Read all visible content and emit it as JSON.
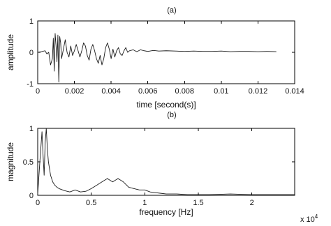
{
  "chart_data": [
    {
      "type": "line",
      "title": "(a)",
      "xlabel": "time [second(s)]",
      "ylabel": "amplitude",
      "xlim": [
        0,
        0.014
      ],
      "ylim": [
        -1,
        1
      ],
      "xticks": [
        "0",
        "0.002",
        "0.004",
        "0.006",
        "0.008",
        "0.01",
        "0.012",
        "0.014"
      ],
      "yticks": [
        "-1",
        "0",
        "1"
      ],
      "grid": false,
      "series": [
        {
          "x": [
            0.0,
            0.0002,
            0.0004,
            0.0005,
            0.0006,
            0.0007,
            0.0008,
            0.00085,
            0.0009,
            0.00095,
            0.001,
            0.00105,
            0.0011,
            0.00115,
            0.0012,
            0.00125,
            0.0013,
            0.0014,
            0.0015,
            0.0016,
            0.0017,
            0.0018,
            0.0019,
            0.002,
            0.0021,
            0.0022,
            0.0023,
            0.0024,
            0.0025,
            0.0026,
            0.0027,
            0.0028,
            0.0029,
            0.003,
            0.0031,
            0.0032,
            0.0033,
            0.0034,
            0.0035,
            0.0036,
            0.0037,
            0.0038,
            0.0039,
            0.004,
            0.0041,
            0.0042,
            0.0043,
            0.0044,
            0.0045,
            0.0046,
            0.0047,
            0.0048,
            0.0049,
            0.005,
            0.0052,
            0.0054,
            0.0056,
            0.0058,
            0.006,
            0.0063,
            0.0066,
            0.007,
            0.0075,
            0.008,
            0.0085,
            0.009,
            0.0095,
            0.01,
            0.0105,
            0.011,
            0.0115,
            0.012,
            0.0125,
            0.013
          ],
          "y": [
            0.0,
            0.02,
            0.05,
            -0.05,
            0.0,
            -0.4,
            -0.2,
            0.45,
            -0.6,
            0.6,
            0.2,
            -0.3,
            0.55,
            -0.95,
            0.5,
            0.3,
            -0.2,
            0.1,
            0.4,
            0.0,
            -0.15,
            0.2,
            -0.1,
            0.05,
            0.25,
            0.05,
            -0.15,
            0.05,
            0.3,
            0.2,
            -0.1,
            -0.25,
            0.1,
            0.25,
            0.05,
            -0.2,
            -0.35,
            -0.1,
            -0.4,
            -0.2,
            0.15,
            0.3,
            0.1,
            -0.2,
            0.1,
            -0.15,
            0.05,
            0.15,
            -0.05,
            -0.1,
            0.05,
            0.15,
            0.0,
            0.05,
            0.08,
            0.02,
            0.08,
            0.05,
            0.03,
            0.06,
            0.04,
            0.05,
            0.04,
            0.03,
            0.04,
            0.03,
            0.03,
            0.04,
            0.02,
            0.03,
            0.03,
            0.02,
            0.03,
            0.02
          ]
        }
      ]
    },
    {
      "type": "line",
      "title": "(b)",
      "xlabel": "frequency [Hz]",
      "ylabel": "magnitude",
      "xlim": [
        0,
        24000
      ],
      "ylim": [
        0,
        1
      ],
      "xticks": [
        "0",
        "0.5",
        "1",
        "1.5",
        "2"
      ],
      "yticks": [
        "0",
        "0.5",
        "1"
      ],
      "x_multiplier": "x 10",
      "x_multiplier_exponent": "4",
      "grid": false,
      "series": [
        {
          "x": [
            0,
            200,
            400,
            500,
            600,
            700,
            800,
            900,
            1000,
            1200,
            1400,
            1600,
            1800,
            2000,
            2500,
            3000,
            3500,
            4000,
            4500,
            5000,
            5500,
            6000,
            6500,
            7000,
            7500,
            8000,
            8500,
            9000,
            9500,
            10000,
            10500,
            11000,
            11500,
            12000,
            13000,
            14000,
            15000,
            16000,
            18000,
            20000,
            22000,
            24000
          ],
          "y": [
            0.02,
            0.5,
            0.95,
            0.6,
            0.3,
            0.8,
            1.0,
            0.7,
            0.5,
            0.3,
            0.2,
            0.15,
            0.12,
            0.1,
            0.07,
            0.05,
            0.08,
            0.05,
            0.06,
            0.1,
            0.15,
            0.2,
            0.25,
            0.2,
            0.25,
            0.2,
            0.12,
            0.1,
            0.08,
            0.08,
            0.05,
            0.04,
            0.03,
            0.02,
            0.02,
            0.01,
            0.01,
            0.01,
            0.02,
            0.01,
            0.01,
            0.01
          ]
        }
      ]
    }
  ]
}
